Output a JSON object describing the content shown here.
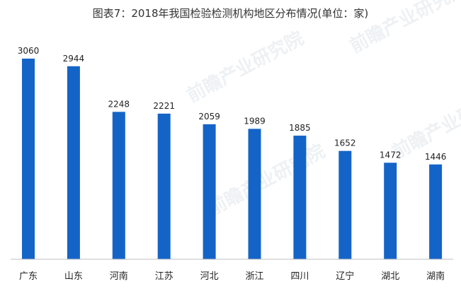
{
  "chart_data": {
    "type": "bar",
    "title": "图表7：2018年我国检验检测机构地区分布情况(单位：家)",
    "categories": [
      "广东",
      "山东",
      "河南",
      "江苏",
      "河北",
      "浙江",
      "四川",
      "辽宁",
      "湖北",
      "湖南"
    ],
    "values": [
      3060,
      2944,
      2248,
      2221,
      2059,
      1989,
      1885,
      1652,
      1472,
      1446
    ],
    "xlabel": "",
    "ylabel": "",
    "ylim": [
      0,
      3300
    ],
    "grid": false,
    "legend": "none",
    "bar_color": "#1464C8",
    "watermark": "前瞻产业研究院"
  }
}
